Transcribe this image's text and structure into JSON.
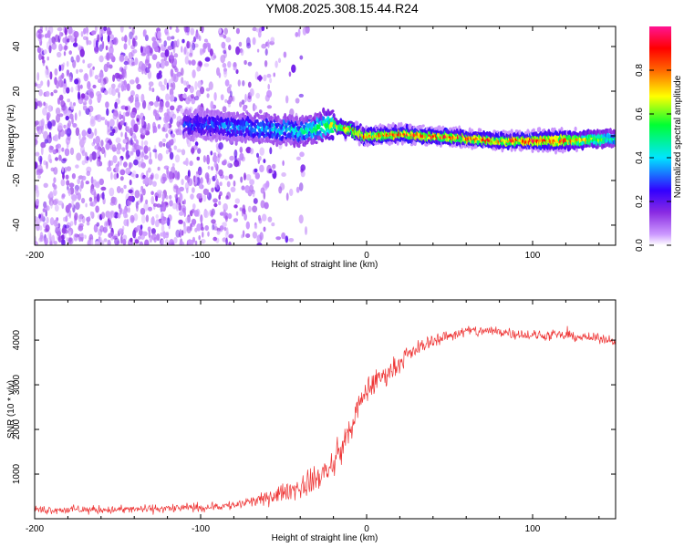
{
  "title": "YM08.2025.308.15.44.R24",
  "chart_data": [
    {
      "type": "heatmap",
      "title": "YM08.2025.308.15.44.R24",
      "xlabel": "Height of straight line (km)",
      "ylabel": "Frequency (Hz)",
      "xlim": [
        -200,
        150
      ],
      "ylim": [
        -49,
        49
      ],
      "xticks": [
        -200,
        -100,
        0,
        100
      ],
      "xtick_labels": [
        "-200",
        "-100",
        "0",
        "100"
      ],
      "yticks": [
        -40,
        -20,
        0,
        20,
        40
      ],
      "ytick_labels": [
        "-40",
        "-20",
        "0",
        "20",
        "40"
      ],
      "colorbar": {
        "label": "Normalized spectral amplitude",
        "range": [
          0,
          1
        ],
        "ticks": [
          0.0,
          0.2,
          0.4,
          0.6,
          0.8
        ],
        "tick_labels": [
          "0.0",
          "0.2",
          "0.4",
          "0.6",
          "0.8"
        ],
        "colors": [
          "#ffffff",
          "#cc99ff",
          "#8a2be2",
          "#3300ff",
          "#00e5ff",
          "#00ff33",
          "#ffff00",
          "#ff6600",
          "#ff0000",
          "#ff1493"
        ]
      },
      "ridge": {
        "description": "frequency of maximum amplitude vs height",
        "x": [
          -100,
          -80,
          -60,
          -40,
          -30,
          -20,
          -10,
          0,
          20,
          40,
          60,
          80,
          100,
          120,
          150
        ],
        "freq": [
          5,
          4,
          3,
          2,
          3,
          5,
          3,
          0,
          1,
          0,
          -1,
          -2,
          -2,
          -2,
          -1
        ],
        "amplitude": [
          0.3,
          0.35,
          0.4,
          0.45,
          0.5,
          0.7,
          0.8,
          0.85,
          0.9,
          0.9,
          0.9,
          0.85,
          0.95,
          0.85,
          0.5
        ]
      },
      "noise_extent_x": [
        -200,
        -60
      ]
    },
    {
      "type": "line",
      "xlabel": "Height of straight line (km)",
      "ylabel": "SNR (10 * v/v)",
      "xlim": [
        -200,
        150
      ],
      "ylim": [
        0,
        4900
      ],
      "xticks": [
        -200,
        -100,
        0,
        100
      ],
      "xtick_labels": [
        "-200",
        "-100",
        "0",
        "100"
      ],
      "yticks": [
        1000,
        2000,
        3000,
        4000
      ],
      "ytick_labels": [
        "1000",
        "2000",
        "3000",
        "4000"
      ],
      "series": [
        {
          "name": "SNR",
          "color": "#ee3333",
          "x": [
            -200,
            -150,
            -100,
            -80,
            -60,
            -50,
            -40,
            -30,
            -20,
            -10,
            0,
            10,
            20,
            30,
            40,
            50,
            60,
            80,
            100,
            120,
            150
          ],
          "y": [
            200,
            200,
            250,
            300,
            450,
            600,
            700,
            900,
            1200,
            2000,
            2900,
            3200,
            3500,
            3800,
            4000,
            4100,
            4200,
            4200,
            4100,
            4100,
            4000
          ],
          "noise_amplitude": [
            140,
            140,
            150,
            170,
            220,
            300,
            400,
            450,
            500,
            500,
            450,
            350,
            300,
            250,
            220,
            200,
            200,
            200,
            180,
            160,
            150
          ]
        }
      ]
    }
  ]
}
